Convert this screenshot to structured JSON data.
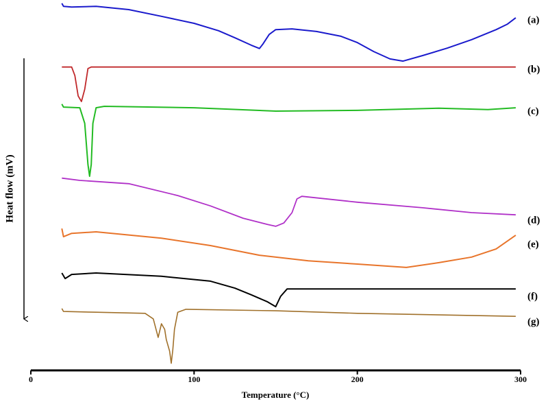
{
  "chart_data": {
    "type": "line",
    "x_label": "Temperature (°C)",
    "y_label": "Heat flow (mV)",
    "xlim": [
      0,
      300
    ],
    "xticks": [
      0,
      100,
      200,
      300
    ],
    "ylim": [
      0,
      100
    ],
    "series": [
      {
        "name": "(a)",
        "color": "#1a1acc",
        "x": [
          19,
          20,
          25,
          40,
          60,
          80,
          100,
          115,
          125,
          135,
          140,
          142,
          146,
          150,
          160,
          175,
          190,
          200,
          210,
          220,
          228,
          240,
          255,
          270,
          285,
          292,
          297
        ],
        "values": [
          99.1,
          98.3,
          98.1,
          98.3,
          97.4,
          95.6,
          93.7,
          91.7,
          89.8,
          87.8,
          86.9,
          88.0,
          90.7,
          92.0,
          92.2,
          91.5,
          90.2,
          88.5,
          86.1,
          84.1,
          83.5,
          85.0,
          87.0,
          89.3,
          92.0,
          93.5,
          95.2
        ]
      },
      {
        "name": "(b)",
        "color": "#c0282a",
        "x": [
          19,
          25,
          27,
          29,
          31,
          33,
          35,
          37,
          297
        ],
        "values": [
          81.9,
          81.9,
          79.6,
          74.1,
          72.6,
          75.9,
          81.5,
          81.9,
          81.9
        ]
      },
      {
        "name": "(c)",
        "color": "#22bb22",
        "x": [
          19,
          20,
          30,
          33,
          35,
          36,
          37,
          38,
          40,
          45,
          100,
          150,
          200,
          250,
          280,
          297
        ],
        "values": [
          71.9,
          71.1,
          70.9,
          66.7,
          55.6,
          52.4,
          55.6,
          66.7,
          70.9,
          71.3,
          70.9,
          70.0,
          70.2,
          70.8,
          70.4,
          70.9
        ]
      },
      {
        "name": "(d)",
        "color": "#b030c8",
        "x": [
          19,
          30,
          60,
          90,
          110,
          130,
          145,
          150,
          155,
          160,
          163,
          166,
          200,
          240,
          270,
          297
        ],
        "values": [
          51.9,
          51.3,
          50.4,
          47.2,
          44.4,
          41.1,
          39.4,
          38.9,
          39.8,
          42.6,
          46.3,
          47.0,
          45.4,
          43.9,
          42.6,
          42.0
        ]
      },
      {
        "name": "(e)",
        "color": "#e8742a",
        "x": [
          19,
          20,
          25,
          40,
          80,
          110,
          140,
          170,
          200,
          230,
          250,
          270,
          285,
          297
        ],
        "values": [
          38.3,
          36.1,
          37.0,
          37.4,
          35.7,
          33.7,
          31.1,
          29.6,
          28.7,
          27.8,
          29.1,
          30.6,
          32.8,
          36.5
        ]
      },
      {
        "name": "(f)",
        "color": "#000000",
        "x": [
          19,
          21,
          25,
          40,
          80,
          110,
          125,
          135,
          145,
          150,
          153,
          157,
          297
        ],
        "values": [
          26.3,
          24.8,
          25.9,
          26.3,
          25.4,
          24.1,
          22.2,
          20.4,
          18.5,
          17.2,
          20.0,
          22.0,
          22.0
        ]
      },
      {
        "name": "(g)",
        "color": "#a0702a",
        "x": [
          19,
          20,
          40,
          70,
          75,
          78,
          80,
          82,
          83,
          85,
          86,
          87,
          88,
          90,
          95,
          150,
          200,
          297
        ],
        "values": [
          16.7,
          15.9,
          15.7,
          15.4,
          13.9,
          8.9,
          12.6,
          11.1,
          8.3,
          5.2,
          1.9,
          5.6,
          11.1,
          15.7,
          16.5,
          16.1,
          15.4,
          14.6
        ]
      }
    ]
  }
}
